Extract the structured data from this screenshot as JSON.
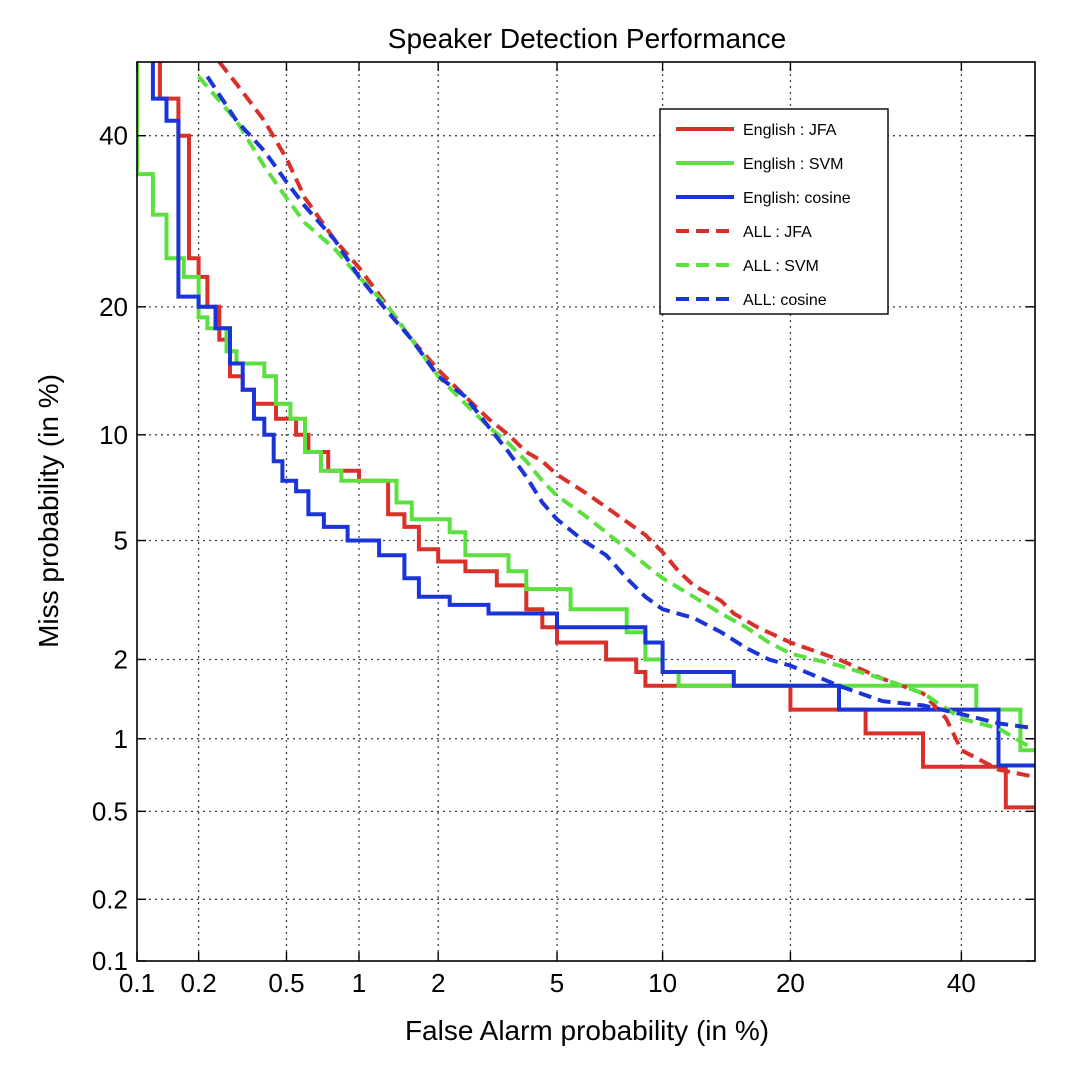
{
  "chart_data": {
    "type": "line",
    "title": "Speaker Detection Performance",
    "xlabel": "False Alarm probability (in %)",
    "ylabel": "Miss probability (in %)",
    "x_scale": "probit",
    "y_scale": "probit",
    "xlim": [
      0.1,
      50
    ],
    "ylim": [
      0.1,
      50
    ],
    "x_ticks": [
      0.1,
      0.2,
      0.5,
      1,
      2,
      5,
      10,
      20,
      40
    ],
    "x_tick_labels": [
      "0.1",
      "0.2",
      "0.5",
      "1",
      "2",
      "5",
      "10",
      "20",
      "40"
    ],
    "y_ticks": [
      0.1,
      0.2,
      0.5,
      1,
      2,
      5,
      10,
      20,
      40
    ],
    "y_tick_labels": [
      "0.1",
      "0.2",
      "0.5",
      "1",
      "2",
      "5",
      "10",
      "20",
      "40"
    ],
    "grid": true,
    "legend_position": "top-right",
    "series": [
      {
        "name": "English : JFA",
        "color": "#d9302a",
        "dash": "solid",
        "points": [
          [
            0.13,
            50
          ],
          [
            0.13,
            45
          ],
          [
            0.16,
            45
          ],
          [
            0.16,
            40
          ],
          [
            0.18,
            40
          ],
          [
            0.18,
            25
          ],
          [
            0.2,
            25
          ],
          [
            0.2,
            23
          ],
          [
            0.22,
            23
          ],
          [
            0.22,
            20
          ],
          [
            0.25,
            20
          ],
          [
            0.25,
            17
          ],
          [
            0.28,
            17
          ],
          [
            0.28,
            14
          ],
          [
            0.32,
            14
          ],
          [
            0.32,
            13
          ],
          [
            0.36,
            13
          ],
          [
            0.36,
            12
          ],
          [
            0.45,
            12
          ],
          [
            0.45,
            11
          ],
          [
            0.55,
            11
          ],
          [
            0.55,
            10
          ],
          [
            0.62,
            10
          ],
          [
            0.62,
            9
          ],
          [
            0.75,
            9
          ],
          [
            0.75,
            8
          ],
          [
            1,
            8
          ],
          [
            1,
            7.5
          ],
          [
            1.3,
            7.5
          ],
          [
            1.3,
            6
          ],
          [
            1.5,
            6
          ],
          [
            1.5,
            5.5
          ],
          [
            1.7,
            5.5
          ],
          [
            1.7,
            4.7
          ],
          [
            2,
            4.7
          ],
          [
            2,
            4.3
          ],
          [
            2.5,
            4.3
          ],
          [
            2.5,
            4
          ],
          [
            3.2,
            4
          ],
          [
            3.2,
            3.6
          ],
          [
            4,
            3.6
          ],
          [
            4,
            3
          ],
          [
            4.5,
            3
          ],
          [
            4.5,
            2.6
          ],
          [
            5,
            2.6
          ],
          [
            5,
            2.3
          ],
          [
            7,
            2.3
          ],
          [
            7,
            2
          ],
          [
            8.5,
            2
          ],
          [
            8.5,
            1.8
          ],
          [
            9,
            1.8
          ],
          [
            9,
            1.6
          ],
          [
            20,
            1.6
          ],
          [
            20,
            1.3
          ],
          [
            28,
            1.3
          ],
          [
            28,
            1.05
          ],
          [
            35,
            1.05
          ],
          [
            35,
            0.77
          ],
          [
            46,
            0.77
          ],
          [
            46,
            0.52
          ],
          [
            50,
            0.52
          ]
        ]
      },
      {
        "name": "English : SVM",
        "color": "#5be040",
        "dash": "solid",
        "points": [
          [
            0.1,
            50
          ],
          [
            0.1,
            35
          ],
          [
            0.12,
            35
          ],
          [
            0.12,
            30
          ],
          [
            0.14,
            30
          ],
          [
            0.14,
            25
          ],
          [
            0.17,
            25
          ],
          [
            0.17,
            23
          ],
          [
            0.2,
            23
          ],
          [
            0.2,
            19
          ],
          [
            0.22,
            19
          ],
          [
            0.22,
            18
          ],
          [
            0.27,
            18
          ],
          [
            0.27,
            16
          ],
          [
            0.3,
            16
          ],
          [
            0.3,
            15
          ],
          [
            0.4,
            15
          ],
          [
            0.4,
            14
          ],
          [
            0.45,
            14
          ],
          [
            0.45,
            12
          ],
          [
            0.52,
            12
          ],
          [
            0.52,
            11
          ],
          [
            0.6,
            11
          ],
          [
            0.6,
            9
          ],
          [
            0.7,
            9
          ],
          [
            0.7,
            8
          ],
          [
            0.85,
            8
          ],
          [
            0.85,
            7.5
          ],
          [
            1.4,
            7.5
          ],
          [
            1.4,
            6.5
          ],
          [
            1.6,
            6.5
          ],
          [
            1.6,
            5.8
          ],
          [
            2.2,
            5.8
          ],
          [
            2.2,
            5.3
          ],
          [
            2.5,
            5.3
          ],
          [
            2.5,
            4.5
          ],
          [
            3.5,
            4.5
          ],
          [
            3.5,
            4
          ],
          [
            4,
            4
          ],
          [
            4,
            3.5
          ],
          [
            5.5,
            3.5
          ],
          [
            5.5,
            3
          ],
          [
            8,
            3
          ],
          [
            8,
            2.5
          ],
          [
            9,
            2.5
          ],
          [
            9,
            2
          ],
          [
            10,
            2
          ],
          [
            10,
            1.8
          ],
          [
            11,
            1.8
          ],
          [
            11,
            1.6
          ],
          [
            42,
            1.6
          ],
          [
            42,
            1.3
          ],
          [
            48,
            1.3
          ],
          [
            48,
            0.9
          ],
          [
            50,
            0.9
          ]
        ]
      },
      {
        "name": "English: cosine",
        "color": "#1a34d8",
        "dash": "solid",
        "points": [
          [
            0.12,
            50
          ],
          [
            0.12,
            45
          ],
          [
            0.14,
            45
          ],
          [
            0.14,
            42
          ],
          [
            0.16,
            42
          ],
          [
            0.16,
            21
          ],
          [
            0.2,
            21
          ],
          [
            0.2,
            20
          ],
          [
            0.24,
            20
          ],
          [
            0.24,
            18
          ],
          [
            0.28,
            18
          ],
          [
            0.28,
            15
          ],
          [
            0.32,
            15
          ],
          [
            0.32,
            13
          ],
          [
            0.36,
            13
          ],
          [
            0.36,
            11
          ],
          [
            0.4,
            11
          ],
          [
            0.4,
            10
          ],
          [
            0.44,
            10
          ],
          [
            0.44,
            8.5
          ],
          [
            0.48,
            8.5
          ],
          [
            0.48,
            7.5
          ],
          [
            0.55,
            7.5
          ],
          [
            0.55,
            7
          ],
          [
            0.62,
            7
          ],
          [
            0.62,
            6
          ],
          [
            0.72,
            6
          ],
          [
            0.72,
            5.5
          ],
          [
            0.9,
            5.5
          ],
          [
            0.9,
            5
          ],
          [
            1.2,
            5
          ],
          [
            1.2,
            4.5
          ],
          [
            1.5,
            4.5
          ],
          [
            1.5,
            3.8
          ],
          [
            1.7,
            3.8
          ],
          [
            1.7,
            3.3
          ],
          [
            2.2,
            3.3
          ],
          [
            2.2,
            3.1
          ],
          [
            3,
            3.1
          ],
          [
            3,
            2.9
          ],
          [
            5,
            2.9
          ],
          [
            5,
            2.6
          ],
          [
            9,
            2.6
          ],
          [
            9,
            2.3
          ],
          [
            10,
            2.3
          ],
          [
            10,
            1.8
          ],
          [
            15,
            1.8
          ],
          [
            15,
            1.6
          ],
          [
            25,
            1.6
          ],
          [
            25,
            1.3
          ],
          [
            45,
            1.3
          ],
          [
            45,
            0.78
          ],
          [
            50,
            0.78
          ]
        ]
      },
      {
        "name": "ALL : JFA",
        "color": "#d9302a",
        "dash": "dashed",
        "points": [
          [
            0.25,
            50
          ],
          [
            0.3,
            47
          ],
          [
            0.4,
            42
          ],
          [
            0.5,
            37
          ],
          [
            0.6,
            32
          ],
          [
            0.8,
            27
          ],
          [
            1,
            24
          ],
          [
            1.3,
            20
          ],
          [
            1.6,
            17
          ],
          [
            2,
            14.5
          ],
          [
            2.5,
            12.5
          ],
          [
            3,
            11
          ],
          [
            3.5,
            10
          ],
          [
            4,
            9
          ],
          [
            4.5,
            8.5
          ],
          [
            5,
            7.8
          ],
          [
            6,
            7
          ],
          [
            7,
            6.3
          ],
          [
            8,
            5.7
          ],
          [
            9,
            5.2
          ],
          [
            10,
            4.6
          ],
          [
            11,
            4
          ],
          [
            12,
            3.6
          ],
          [
            14,
            3.2
          ],
          [
            15,
            2.9
          ],
          [
            17,
            2.6
          ],
          [
            20,
            2.3
          ],
          [
            25,
            2
          ],
          [
            30,
            1.7
          ],
          [
            35,
            1.5
          ],
          [
            38,
            1.2
          ],
          [
            40,
            0.9
          ],
          [
            45,
            0.75
          ],
          [
            50,
            0.7
          ]
        ]
      },
      {
        "name": "ALL : SVM",
        "color": "#5be040",
        "dash": "dashed",
        "points": [
          [
            0.2,
            48
          ],
          [
            0.3,
            42
          ],
          [
            0.4,
            36
          ],
          [
            0.5,
            32
          ],
          [
            0.6,
            29
          ],
          [
            0.8,
            26
          ],
          [
            1,
            23
          ],
          [
            1.3,
            20
          ],
          [
            1.6,
            17
          ],
          [
            2,
            14
          ],
          [
            2.5,
            12
          ],
          [
            3,
            10.5
          ],
          [
            3.5,
            9.5
          ],
          [
            4,
            8.5
          ],
          [
            4.5,
            7.5
          ],
          [
            5,
            6.8
          ],
          [
            6,
            6
          ],
          [
            7,
            5.3
          ],
          [
            8,
            4.7
          ],
          [
            9,
            4.2
          ],
          [
            10,
            3.8
          ],
          [
            12,
            3.3
          ],
          [
            14,
            2.9
          ],
          [
            16,
            2.6
          ],
          [
            18,
            2.3
          ],
          [
            20,
            2.1
          ],
          [
            25,
            1.9
          ],
          [
            30,
            1.7
          ],
          [
            35,
            1.5
          ],
          [
            40,
            1.2
          ],
          [
            45,
            1.1
          ],
          [
            50,
            0.9
          ]
        ]
      },
      {
        "name": "ALL: cosine",
        "color": "#1a34d8",
        "dash": "dashed",
        "points": [
          [
            0.22,
            48
          ],
          [
            0.3,
            42
          ],
          [
            0.4,
            38
          ],
          [
            0.5,
            34
          ],
          [
            0.6,
            31
          ],
          [
            0.8,
            27
          ],
          [
            1,
            23
          ],
          [
            1.3,
            19.5
          ],
          [
            1.6,
            17
          ],
          [
            2,
            14
          ],
          [
            2.5,
            12.5
          ],
          [
            3,
            10.5
          ],
          [
            3.5,
            9
          ],
          [
            4,
            7.7
          ],
          [
            4.5,
            6.5
          ],
          [
            5,
            5.8
          ],
          [
            6,
            5
          ],
          [
            7,
            4.5
          ],
          [
            8,
            3.8
          ],
          [
            9,
            3.3
          ],
          [
            10,
            3
          ],
          [
            12,
            2.8
          ],
          [
            14,
            2.5
          ],
          [
            16,
            2.2
          ],
          [
            18,
            2
          ],
          [
            20,
            1.9
          ],
          [
            25,
            1.6
          ],
          [
            30,
            1.4
          ],
          [
            35,
            1.35
          ],
          [
            40,
            1.25
          ],
          [
            45,
            1.15
          ],
          [
            50,
            1.1
          ]
        ]
      }
    ]
  }
}
